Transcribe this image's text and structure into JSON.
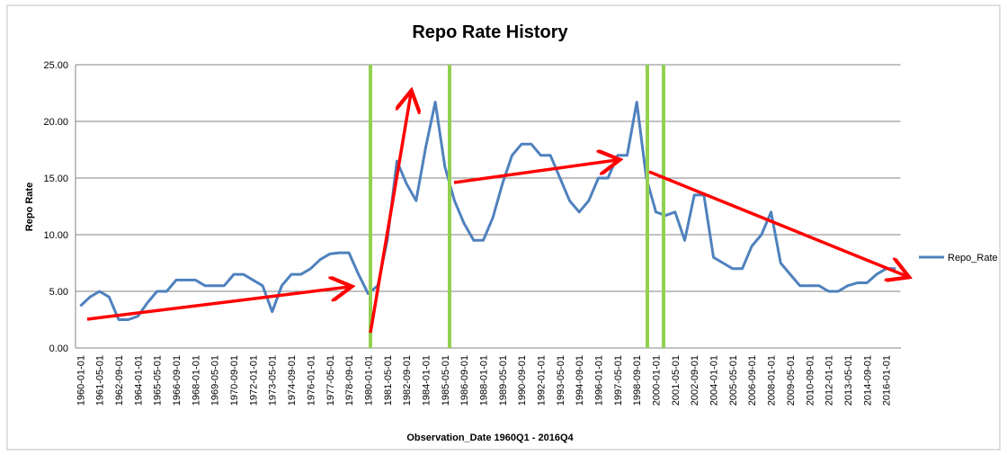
{
  "chart_data": {
    "type": "line",
    "title": "Repo Rate History",
    "x_label": "Observation_Date 1960Q1 - 2016Q4",
    "y_label": "Repo Rate",
    "categories": [
      "1960-01-01",
      null,
      "1961-05-01",
      null,
      "1962-09-01",
      null,
      "1964-01-01",
      null,
      "1965-05-01",
      null,
      "1966-09-01",
      null,
      "1968-01-01",
      null,
      "1969-05-01",
      null,
      "1970-09-01",
      null,
      "1972-01-01",
      null,
      "1973-05-01",
      null,
      "1974-09-01",
      null,
      "1976-01-01",
      null,
      "1977-05-01",
      null,
      "1978-09-01",
      null,
      "1980-01-01",
      null,
      "1981-05-01",
      null,
      "1982-09-01",
      null,
      "1984-01-01",
      null,
      "1985-05-01",
      null,
      "1986-09-01",
      null,
      "1988-01-01",
      null,
      "1989-05-01",
      null,
      "1990-09-01",
      null,
      "1992-01-01",
      null,
      "1993-05-01",
      null,
      "1994-09-01",
      null,
      "1996-01-01",
      null,
      "1997-05-01",
      null,
      "1998-09-01",
      null,
      "2000-01-01",
      null,
      "2001-05-01",
      null,
      "2002-09-01",
      null,
      "2004-01-01",
      null,
      "2005-05-01",
      null,
      "2006-09-01",
      null,
      "2008-01-01",
      null,
      "2009-05-01",
      null,
      "2010-09-01",
      null,
      "2012-01-01",
      null,
      "2013-05-01",
      null,
      "2014-09-01",
      null,
      "2016-01-01",
      null
    ],
    "series": [
      {
        "name": "Repo_Rate",
        "color": "#4f81bd",
        "values": [
          3.7,
          4.5,
          5.0,
          4.5,
          2.5,
          2.5,
          2.8,
          4.0,
          5.0,
          5.0,
          6.0,
          6.0,
          6.0,
          5.5,
          5.5,
          5.5,
          6.5,
          6.5,
          6.0,
          5.5,
          3.2,
          5.5,
          6.5,
          6.5,
          7.0,
          7.8,
          8.3,
          8.4,
          8.4,
          6.5,
          4.8,
          5.5,
          9.5,
          16.5,
          14.5,
          13.0,
          17.7,
          21.7,
          16.0,
          13.0,
          11.0,
          9.5,
          9.5,
          11.5,
          14.5,
          17.0,
          18.0,
          18.0,
          17.0,
          17.0,
          15.0,
          13.0,
          12.0,
          13.0,
          15.0,
          15.0,
          17.0,
          17.0,
          21.7,
          15.0,
          12.0,
          11.7,
          12.0,
          9.5,
          13.5,
          13.5,
          8.0,
          7.5,
          7.0,
          7.0,
          9.0,
          10.0,
          12.0,
          7.5,
          6.5,
          5.5,
          5.5,
          5.5,
          5.0,
          5.0,
          5.5,
          5.75,
          5.75,
          6.5,
          7.0,
          7.0
        ]
      }
    ],
    "ylim": [
      0,
      25
    ],
    "yticks": [
      {
        "value": 0,
        "label": "0.00"
      },
      {
        "value": 5,
        "label": "5.00"
      },
      {
        "value": 10,
        "label": "10.00"
      },
      {
        "value": 15,
        "label": "15.00"
      },
      {
        "value": 20,
        "label": "20.00"
      },
      {
        "value": 25,
        "label": "25.00"
      }
    ],
    "grid": true,
    "legend": "right"
  }
}
